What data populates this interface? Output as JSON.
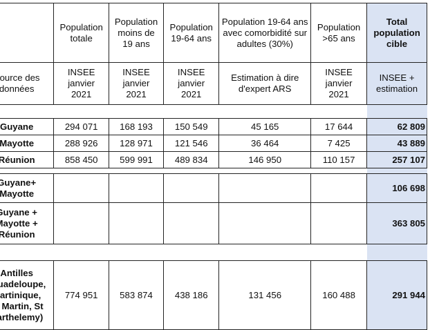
{
  "headers": {
    "pop_totale": [
      "Population",
      "totale"
    ],
    "pop_moins19": [
      "Population",
      "moins de",
      "19 ans"
    ],
    "pop_19_64": [
      "Population",
      "19-64 ans"
    ],
    "pop_comorb": [
      "Population 19-64 ans",
      "avec comorbidité sur",
      "adultes  (30%)"
    ],
    "pop_65": [
      "Population",
      ">65 ans"
    ],
    "total": [
      "Total",
      "population",
      "cible"
    ]
  },
  "sources": {
    "label": [
      "Source des",
      "données"
    ],
    "insee": [
      "INSEE",
      "janvier",
      "2021"
    ],
    "estimation": [
      "Estimation à dire",
      "d'expert ARS"
    ],
    "total": [
      "INSEE +",
      "estimation"
    ]
  },
  "rows": [
    {
      "label": [
        "Guyane"
      ],
      "values": [
        "294 071",
        "168 193",
        "150 549",
        "45 165",
        "17 644"
      ],
      "total": "62 809"
    },
    {
      "label": [
        "Mayotte"
      ],
      "values": [
        "288 926",
        "128 971",
        "121 546",
        "36 464",
        "7 425"
      ],
      "total": "43 889"
    },
    {
      "label": [
        "Réunion"
      ],
      "values": [
        "858 450",
        "599 991",
        "489 834",
        "146 950",
        "110 157"
      ],
      "total": "257 107"
    }
  ],
  "subtotals": [
    {
      "label": [
        "Guyane+",
        "Mayotte"
      ],
      "total": "106 698"
    },
    {
      "label": [
        "Guyane +",
        "Mayotte +",
        "Réunion"
      ],
      "total": "363 805"
    }
  ],
  "antilles": {
    "label": [
      "Antilles",
      "(Guadeloupe,",
      "Martinique,",
      "St Martin, St",
      "Barthelemy)"
    ],
    "values": [
      "774 951",
      "583 874",
      "438 186",
      "131 456",
      "160 488"
    ],
    "total": "291 944"
  }
}
